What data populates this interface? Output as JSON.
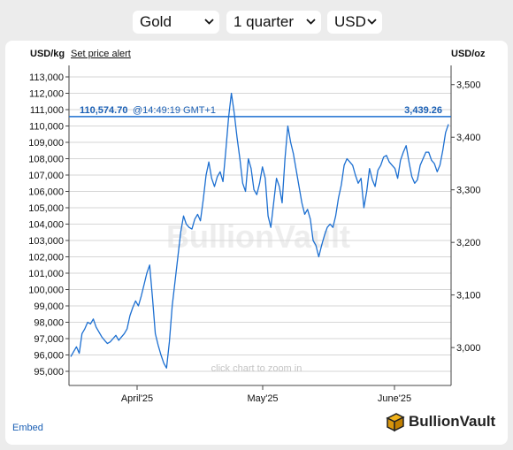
{
  "selectors": {
    "metal": "Gold",
    "period": "1 quarter",
    "currency": "USD"
  },
  "left_unit": "USD/kg",
  "right_unit": "USD/oz",
  "alert_link": "Set price alert",
  "embed_link": "Embed",
  "watermark": "BullionVault",
  "zoom_hint": "click chart to zoom in",
  "logo_text": "BullionVault",
  "current": {
    "kg_label": "110,574.70",
    "time_label": "@14:49:19 GMT+1",
    "oz_label": "3,439.26",
    "kg": 110574.7
  },
  "colors": {
    "series": "#1c6fd1",
    "grid": "#d6d6d6",
    "axis": "#444444",
    "label_blue": "#1a5fb4"
  },
  "chart_data": {
    "type": "line",
    "x_ticks": [
      "April'25",
      "May'25",
      "June'25"
    ],
    "y_left": {
      "unit": "USD/kg",
      "min": 95000,
      "max": 113000,
      "step": 1000,
      "ticks": [
        "95,000",
        "96,000",
        "97,000",
        "98,000",
        "99,000",
        "100,000",
        "101,000",
        "102,000",
        "103,000",
        "104,000",
        "105,000",
        "106,000",
        "107,000",
        "108,000",
        "109,000",
        "110,000",
        "111,000",
        "112,000",
        "113,000"
      ]
    },
    "y_right": {
      "unit": "USD/oz",
      "ticks": [
        "3,000",
        "3,100",
        "3,200",
        "3,300",
        "3,400",
        "3,500"
      ]
    },
    "series": [
      {
        "values": [
          95900,
          96200,
          96500,
          96100,
          97300,
          97600,
          98000,
          97900,
          98200,
          97700,
          97400,
          97100,
          96900,
          96700,
          96800,
          97000,
          97200,
          96900,
          97100,
          97300,
          97600,
          98400,
          98900,
          99300,
          99000,
          99600,
          100300,
          101000,
          101500,
          99500,
          97300,
          96600,
          96000,
          95500,
          95200,
          96800,
          99000,
          100500,
          102000,
          103500,
          104500,
          104000,
          103800,
          103700,
          104300,
          104600,
          104200,
          105500,
          107000,
          107800,
          106800,
          106300,
          106900,
          107200,
          106600,
          108500,
          110500,
          112000,
          110800,
          109300,
          108000,
          106500,
          106000,
          108000,
          107400,
          106100,
          105800,
          106500,
          107500,
          106800,
          104500,
          103800,
          105300,
          106800,
          106300,
          105300,
          108000,
          110000,
          109000,
          108300,
          107300,
          106300,
          105300,
          104600,
          104900,
          104300,
          103000,
          102700,
          102000,
          102700,
          103300,
          103800,
          104000,
          103800,
          104500,
          105600,
          106400,
          107600,
          108000,
          107800,
          107600,
          107000,
          106500,
          106800,
          105000,
          106000,
          107400,
          106700,
          106300,
          107300,
          107600,
          108100,
          108200,
          107800,
          107600,
          107400,
          106800,
          107900,
          108400,
          108800,
          107800,
          106900,
          106500,
          106700,
          107600,
          108000,
          108400,
          108400,
          107900,
          107700,
          107200,
          107600,
          108500,
          109600,
          110100
        ]
      }
    ]
  }
}
